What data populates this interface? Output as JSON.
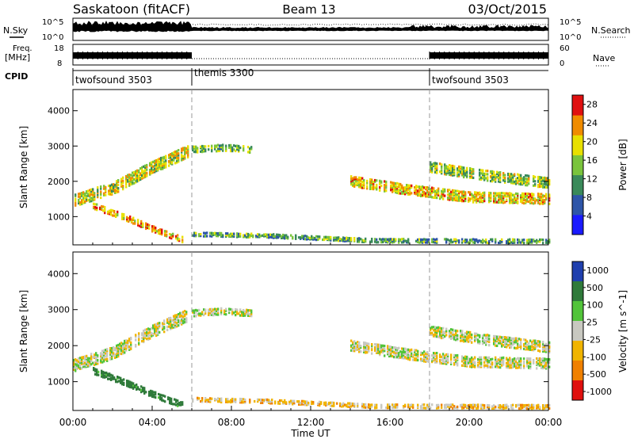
{
  "header": {
    "station": "Saskatoon (fitACF)",
    "beam": "Beam 13",
    "date": "03/Oct/2015"
  },
  "noise_panel": {
    "left_label": "N.Sky",
    "right_label": "N.Search",
    "left_ticks": [
      "10^5",
      "10^0"
    ],
    "right_ticks": [
      "10^5",
      "10^0"
    ]
  },
  "freq_panel": {
    "left_label_1": "Freq.",
    "left_label_2": "[MHz]",
    "right_label": "Nave",
    "left_ticks": [
      "18",
      "8"
    ],
    "right_ticks": [
      "60",
      "0"
    ]
  },
  "cpid": {
    "label": "CPID",
    "modes": [
      {
        "name": "twofsound 3503",
        "start_hour": 0
      },
      {
        "name": "themis 3300",
        "start_hour": 6
      },
      {
        "name": "twofsound 3503",
        "start_hour": 18
      }
    ]
  },
  "chart_data": [
    {
      "type": "heatmap",
      "title": "Power",
      "ylabel": "Slant Range [km]",
      "xlabel": "",
      "xlim": [
        0,
        24
      ],
      "ylim": [
        200,
        4600
      ],
      "y_ticks": [
        "1000",
        "2000",
        "3000",
        "4000"
      ],
      "colorbar": {
        "label": "Power [dB]",
        "ticks": [
          "4",
          "8",
          "12",
          "16",
          "20",
          "24",
          "28"
        ],
        "range": [
          0,
          30
        ],
        "colors": [
          "#1a1aff",
          "#2e55a8",
          "#3a8a5a",
          "#7ac43c",
          "#e8e000",
          "#f08c00",
          "#e01010"
        ]
      },
      "echo_bands": [
        {
          "hours": [
            0.0,
            2.0,
            4.0,
            5.8
          ],
          "range_km": [
            1450,
            1800,
            2400,
            2850
          ],
          "width_km": 350,
          "power_db": 18
        },
        {
          "hours": [
            1.0,
            2.5,
            4.0,
            5.5
          ],
          "range_km": [
            1300,
            1000,
            650,
            350
          ],
          "width_km": 180,
          "power_db": 22
        },
        {
          "hours": [
            6.0,
            7.5,
            9.0
          ],
          "range_km": [
            2900,
            2950,
            2900
          ],
          "width_km": 200,
          "power_db": 14
        },
        {
          "hours": [
            14.0,
            17.0,
            20.0,
            24.0
          ],
          "range_km": [
            2000,
            1750,
            1550,
            1500
          ],
          "width_km": 300,
          "power_db": 20
        },
        {
          "hours": [
            18.0,
            21.0,
            24.0
          ],
          "range_km": [
            2400,
            2150,
            1950
          ],
          "width_km": 300,
          "power_db": 16
        },
        {
          "hours": [
            6.0,
            10.0,
            15.0,
            24.0
          ],
          "range_km": [
            500,
            450,
            320,
            300
          ],
          "width_km": 120,
          "power_db": 12
        }
      ]
    },
    {
      "type": "heatmap",
      "title": "Velocity",
      "ylabel": "Slant Range [km]",
      "xlabel": "Time UT",
      "xlim": [
        0,
        24
      ],
      "ylim": [
        200,
        4600
      ],
      "x_ticks": [
        "00:00",
        "04:00",
        "08:00",
        "12:00",
        "16:00",
        "20:00",
        "00:00"
      ],
      "y_ticks": [
        "1000",
        "2000",
        "3000",
        "4000"
      ],
      "colorbar": {
        "label": "Velocity [m s^-1]",
        "ticks": [
          "1000",
          "500",
          "100",
          "25",
          "-25",
          "-100",
          "-500",
          "-1000"
        ],
        "colors": [
          "#1f3fae",
          "#2f7a3a",
          "#52c43a",
          "#c8c8c0",
          "#f0b400",
          "#f08000",
          "#e0100e"
        ]
      },
      "echo_bands": [
        {
          "hours": [
            0.0,
            2.0,
            4.0,
            5.8
          ],
          "range_km": [
            1450,
            1800,
            2400,
            2850
          ],
          "width_km": 350,
          "velocity": 0
        },
        {
          "hours": [
            1.0,
            2.5,
            4.0,
            5.5
          ],
          "range_km": [
            1300,
            1000,
            650,
            350
          ],
          "width_km": 180,
          "velocity": 300
        },
        {
          "hours": [
            6.0,
            7.5,
            9.0
          ],
          "range_km": [
            2900,
            2950,
            2900
          ],
          "width_km": 200,
          "velocity": 0
        },
        {
          "hours": [
            14.0,
            17.0,
            20.0,
            24.0
          ],
          "range_km": [
            2000,
            1750,
            1550,
            1500
          ],
          "width_km": 300,
          "velocity": 0
        },
        {
          "hours": [
            18.0,
            21.0,
            24.0
          ],
          "range_km": [
            2400,
            2150,
            1950
          ],
          "width_km": 300,
          "velocity": 0
        },
        {
          "hours": [
            6.0,
            10.0,
            15.0,
            24.0
          ],
          "range_km": [
            500,
            450,
            320,
            300
          ],
          "width_km": 120,
          "velocity": -80
        }
      ]
    }
  ]
}
